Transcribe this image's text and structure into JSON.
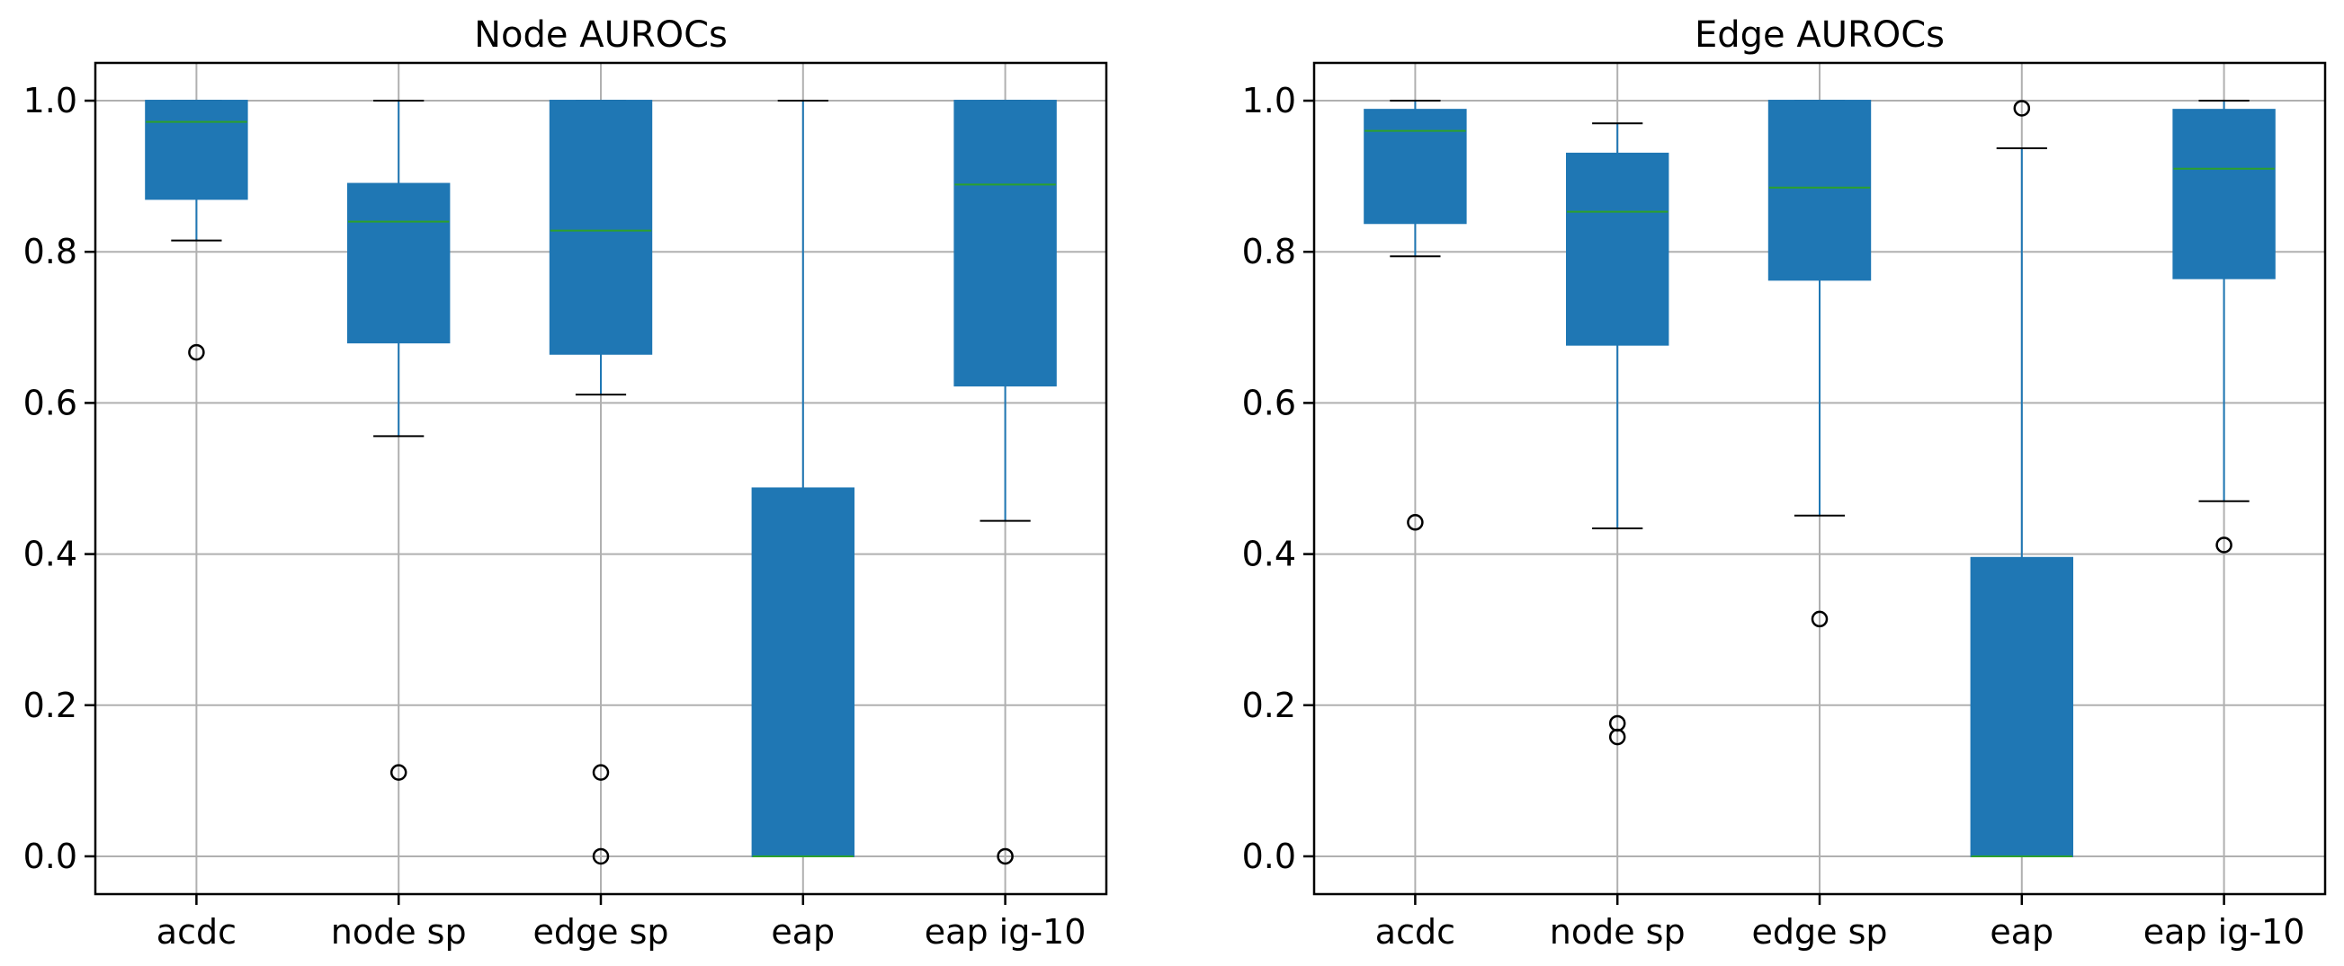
{
  "colors": {
    "box_fill": "#1f77b4",
    "box_edge": "#1f77b4",
    "median": "#2ca02c",
    "whisker": "#1f77b4",
    "cap": "#000000",
    "grid": "#b0b0b0",
    "axes": "#000000",
    "flier": "#000000"
  },
  "chart_data": [
    {
      "type": "box",
      "title": "Node AUROCs",
      "xlabel": "",
      "ylabel": "",
      "categories": [
        "acdc",
        "node sp",
        "edge sp",
        "eap",
        "eap ig-10"
      ],
      "ylim": [
        -0.05,
        1.05
      ],
      "yticks": [
        0.0,
        0.2,
        0.4,
        0.6,
        0.8,
        1.0
      ],
      "ytick_labels": [
        "0.0",
        "0.2",
        "0.4",
        "0.6",
        "0.8",
        "1.0"
      ],
      "grid": true,
      "boxes": [
        {
          "whislo": 0.815,
          "q1": 0.87,
          "med": 0.972,
          "q3": 1.0,
          "whishi": 1.0,
          "fliers": [
            0.667
          ]
        },
        {
          "whislo": 0.556,
          "q1": 0.68,
          "med": 0.84,
          "q3": 0.89,
          "whishi": 1.0,
          "fliers": [
            0.111
          ]
        },
        {
          "whislo": 0.611,
          "q1": 0.665,
          "med": 0.828,
          "q3": 1.0,
          "whishi": 1.0,
          "fliers": [
            0.111,
            0.0
          ]
        },
        {
          "whislo": 0.0,
          "q1": 0.0,
          "med": 0.0,
          "q3": 0.487,
          "whishi": 1.0,
          "fliers": []
        },
        {
          "whislo": 0.444,
          "q1": 0.623,
          "med": 0.889,
          "q3": 1.0,
          "whishi": 1.0,
          "fliers": [
            0.0
          ]
        }
      ]
    },
    {
      "type": "box",
      "title": "Edge AUROCs",
      "xlabel": "",
      "ylabel": "",
      "categories": [
        "acdc",
        "node sp",
        "edge sp",
        "eap",
        "eap ig-10"
      ],
      "ylim": [
        -0.05,
        1.05
      ],
      "yticks": [
        0.0,
        0.2,
        0.4,
        0.6,
        0.8,
        1.0
      ],
      "ytick_labels": [
        "0.0",
        "0.2",
        "0.4",
        "0.6",
        "0.8",
        "1.0"
      ],
      "grid": true,
      "boxes": [
        {
          "whislo": 0.794,
          "q1": 0.838,
          "med": 0.96,
          "q3": 0.988,
          "whishi": 1.0,
          "fliers": [
            0.442
          ]
        },
        {
          "whislo": 0.434,
          "q1": 0.677,
          "med": 0.853,
          "q3": 0.93,
          "whishi": 0.97,
          "fliers": [
            0.176,
            0.158
          ]
        },
        {
          "whislo": 0.451,
          "q1": 0.763,
          "med": 0.885,
          "q3": 1.0,
          "whishi": 1.0,
          "fliers": [
            0.314
          ]
        },
        {
          "whislo": 0.0,
          "q1": 0.0,
          "med": 0.0,
          "q3": 0.395,
          "whishi": 0.937,
          "fliers": [
            0.99
          ]
        },
        {
          "whislo": 0.47,
          "q1": 0.765,
          "med": 0.91,
          "q3": 0.988,
          "whishi": 1.0,
          "fliers": [
            0.412
          ]
        }
      ]
    }
  ]
}
